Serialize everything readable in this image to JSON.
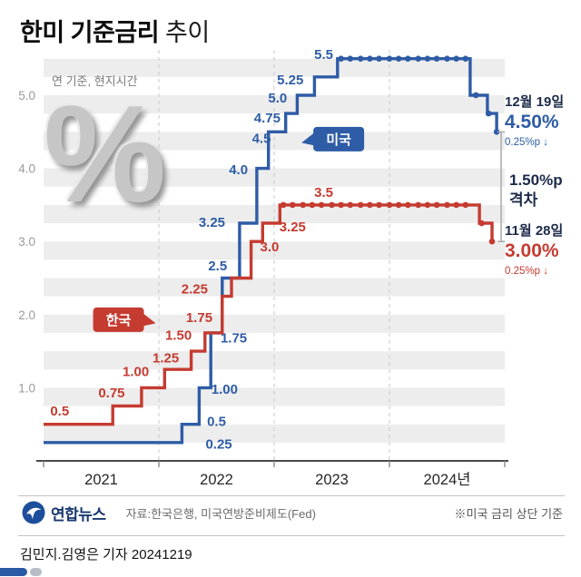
{
  "header": {
    "title_main": "한미 기준금리",
    "title_sub": "추이",
    "subtitle": "연 기준, 현지시간",
    "watermark": "%"
  },
  "chart_data": {
    "type": "line",
    "step": true,
    "title": "한미 기준금리 추이",
    "x_range": [
      2021.0,
      2025.0
    ],
    "y_range": [
      0,
      5.62
    ],
    "band_step": 0.25,
    "x_gridlines": [
      2022,
      2023,
      2024
    ],
    "x_ticks": [
      {
        "t": 2021.5,
        "label": "2021"
      },
      {
        "t": 2022.5,
        "label": "2022"
      },
      {
        "t": 2023.5,
        "label": "2023"
      },
      {
        "t": 2024.5,
        "label": "2024년"
      }
    ],
    "y_ticks": [
      {
        "v": 1.0,
        "label": "1.0"
      },
      {
        "v": 2.0,
        "label": "2.0"
      },
      {
        "v": 3.0,
        "label": "3.0"
      },
      {
        "v": 4.0,
        "label": "4.0"
      },
      {
        "v": 5.0,
        "label": "5.0"
      }
    ],
    "series": [
      {
        "id": "us",
        "name": "미국",
        "color": "#2e5ca6",
        "points": [
          [
            2021.0,
            0.25
          ],
          [
            2022.2,
            0.5
          ],
          [
            2022.35,
            1.0
          ],
          [
            2022.45,
            1.75
          ],
          [
            2022.55,
            2.5
          ],
          [
            2022.7,
            3.25
          ],
          [
            2022.85,
            4.0
          ],
          [
            2022.95,
            4.5
          ],
          [
            2023.1,
            4.75
          ],
          [
            2023.2,
            5.0
          ],
          [
            2023.35,
            5.25
          ],
          [
            2023.55,
            5.5
          ],
          [
            2024.7,
            5.0
          ],
          [
            2024.85,
            4.75
          ],
          [
            2024.93,
            4.5
          ]
        ],
        "dots": [
          [
            2023.58,
            5.5
          ],
          [
            2023.66,
            5.5
          ],
          [
            2023.75,
            5.5
          ],
          [
            2023.83,
            5.5
          ],
          [
            2023.91,
            5.5
          ],
          [
            2024.0,
            5.5
          ],
          [
            2024.08,
            5.5
          ],
          [
            2024.16,
            5.5
          ],
          [
            2024.25,
            5.5
          ],
          [
            2024.33,
            5.5
          ],
          [
            2024.41,
            5.5
          ],
          [
            2024.5,
            5.5
          ],
          [
            2024.58,
            5.5
          ],
          [
            2024.66,
            5.5
          ],
          [
            2024.75,
            5.0
          ],
          [
            2024.86,
            4.75
          ],
          [
            2024.93,
            4.5
          ]
        ],
        "labels": [
          {
            "text": "0.25",
            "t": 2022.52,
            "v": 0.23
          },
          {
            "text": "0.5",
            "t": 2022.5,
            "v": 0.54
          },
          {
            "text": "1.00",
            "t": 2022.57,
            "v": 0.98
          },
          {
            "text": "1.75",
            "t": 2022.65,
            "v": 1.68
          },
          {
            "text": "2.5",
            "t": 2022.51,
            "v": 2.67
          },
          {
            "text": "3.25",
            "t": 2022.46,
            "v": 3.26
          },
          {
            "text": "4.0",
            "t": 2022.69,
            "v": 3.98
          },
          {
            "text": "4.5",
            "t": 2022.89,
            "v": 4.41
          },
          {
            "text": "4.75",
            "t": 2022.94,
            "v": 4.69
          },
          {
            "text": "5.0",
            "t": 2023.03,
            "v": 4.96
          },
          {
            "text": "5.25",
            "t": 2023.14,
            "v": 5.21
          },
          {
            "text": "5.5",
            "t": 2023.43,
            "v": 5.56
          }
        ]
      },
      {
        "id": "kr",
        "name": "한국",
        "color": "#c53b30",
        "points": [
          [
            2021.0,
            0.5
          ],
          [
            2021.6,
            0.75
          ],
          [
            2021.85,
            1.0
          ],
          [
            2022.05,
            1.25
          ],
          [
            2022.28,
            1.5
          ],
          [
            2022.4,
            1.75
          ],
          [
            2022.55,
            2.25
          ],
          [
            2022.63,
            2.5
          ],
          [
            2022.8,
            3.0
          ],
          [
            2022.9,
            3.25
          ],
          [
            2023.05,
            3.5
          ],
          [
            2024.78,
            3.25
          ],
          [
            2024.89,
            3.0
          ]
        ],
        "dots": [
          [
            2023.08,
            3.5
          ],
          [
            2023.16,
            3.5
          ],
          [
            2023.25,
            3.5
          ],
          [
            2023.33,
            3.5
          ],
          [
            2023.41,
            3.5
          ],
          [
            2023.5,
            3.5
          ],
          [
            2023.58,
            3.5
          ],
          [
            2023.66,
            3.5
          ],
          [
            2023.75,
            3.5
          ],
          [
            2023.83,
            3.5
          ],
          [
            2023.91,
            3.5
          ],
          [
            2024.0,
            3.5
          ],
          [
            2024.08,
            3.5
          ],
          [
            2024.16,
            3.5
          ],
          [
            2024.25,
            3.5
          ],
          [
            2024.33,
            3.5
          ],
          [
            2024.41,
            3.5
          ],
          [
            2024.5,
            3.5
          ],
          [
            2024.58,
            3.5
          ],
          [
            2024.66,
            3.5
          ],
          [
            2024.8,
            3.25
          ],
          [
            2024.89,
            3.0
          ]
        ],
        "labels": [
          {
            "text": "0.5",
            "t": 2021.14,
            "v": 0.68
          },
          {
            "text": "0.75",
            "t": 2021.59,
            "v": 0.93
          },
          {
            "text": "1.00",
            "t": 2021.8,
            "v": 1.22
          },
          {
            "text": "1.25",
            "t": 2022.06,
            "v": 1.41
          },
          {
            "text": "1.50",
            "t": 2022.17,
            "v": 1.72
          },
          {
            "text": "1.75",
            "t": 2022.35,
            "v": 1.96
          },
          {
            "text": "2.25",
            "t": 2022.31,
            "v": 2.35
          },
          {
            "text": "3.0",
            "t": 2022.96,
            "v": 2.93
          },
          {
            "text": "3.25",
            "t": 2023.16,
            "v": 3.2
          },
          {
            "text": "3.5",
            "t": 2023.43,
            "v": 3.67
          }
        ]
      }
    ],
    "badges": [
      {
        "id": "us",
        "text": "미국",
        "t": 2023.56,
        "v": 4.4,
        "color": "#2e5ca6",
        "arrow": "left"
      },
      {
        "id": "kr",
        "text": "한국",
        "t": 2021.65,
        "v": 1.93,
        "color": "#c53b30",
        "arrow": "right"
      }
    ]
  },
  "annotations": {
    "us": {
      "date": "12월 19일",
      "rate": "4.50%",
      "change": "0.25%p ↓"
    },
    "gap": {
      "value": "1.50%p",
      "label": "격차"
    },
    "kr": {
      "date": "11월 28일",
      "rate": "3.00%",
      "change": "0.25%p ↓"
    }
  },
  "footer": {
    "logo_text": "연합뉴스",
    "source": "자료:한국은행, 미국연방준비제도(Fed)",
    "note": "※미국 금리 상단 기준"
  },
  "byline": "김민지.김영은 기자 20241219"
}
